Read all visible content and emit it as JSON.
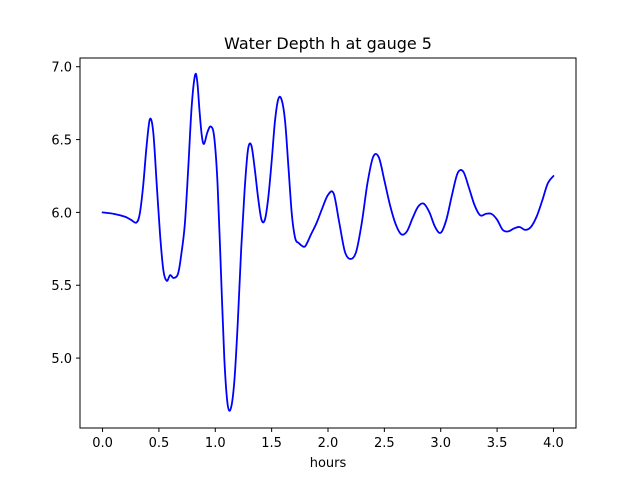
{
  "chart_data": {
    "type": "line",
    "title": "Water Depth h at gauge 5",
    "xlabel": "hours",
    "ylabel": "",
    "xlim": [
      -0.2,
      4.2
    ],
    "ylim": [
      4.52,
      7.06
    ],
    "xticks": [
      0.0,
      0.5,
      1.0,
      1.5,
      2.0,
      2.5,
      3.0,
      3.5,
      4.0
    ],
    "xtick_labels": [
      "0.0",
      "0.5",
      "1.0",
      "1.5",
      "2.0",
      "2.5",
      "3.0",
      "3.5",
      "4.0"
    ],
    "yticks": [
      5.0,
      5.5,
      6.0,
      6.5,
      7.0
    ],
    "ytick_labels": [
      "5.0",
      "5.5",
      "6.0",
      "6.5",
      "7.0"
    ],
    "grid": false,
    "series": [
      {
        "color": "#0000ff",
        "x": [
          0.0,
          0.1,
          0.2,
          0.25,
          0.3,
          0.33,
          0.36,
          0.39,
          0.42,
          0.45,
          0.48,
          0.51,
          0.54,
          0.57,
          0.6,
          0.63,
          0.67,
          0.7,
          0.73,
          0.76,
          0.79,
          0.82,
          0.84,
          0.86,
          0.88,
          0.9,
          0.93,
          0.96,
          0.99,
          1.02,
          1.05,
          1.08,
          1.11,
          1.14,
          1.17,
          1.2,
          1.23,
          1.26,
          1.29,
          1.32,
          1.35,
          1.38,
          1.41,
          1.44,
          1.47,
          1.5,
          1.53,
          1.56,
          1.59,
          1.62,
          1.65,
          1.68,
          1.71,
          1.74,
          1.77,
          1.8,
          1.85,
          1.9,
          1.95,
          2.0,
          2.05,
          2.1,
          2.15,
          2.2,
          2.25,
          2.3,
          2.35,
          2.4,
          2.45,
          2.5,
          2.55,
          2.6,
          2.65,
          2.7,
          2.75,
          2.8,
          2.85,
          2.9,
          2.95,
          3.0,
          3.05,
          3.1,
          3.15,
          3.2,
          3.25,
          3.3,
          3.35,
          3.4,
          3.45,
          3.5,
          3.55,
          3.6,
          3.65,
          3.7,
          3.75,
          3.8,
          3.85,
          3.9,
          3.95,
          4.0
        ],
        "y": [
          6.0,
          5.99,
          5.97,
          5.95,
          5.93,
          5.99,
          6.18,
          6.45,
          6.64,
          6.55,
          6.2,
          5.85,
          5.6,
          5.53,
          5.57,
          5.55,
          5.58,
          5.72,
          5.92,
          6.3,
          6.72,
          6.94,
          6.9,
          6.7,
          6.53,
          6.47,
          6.55,
          6.59,
          6.52,
          6.2,
          5.6,
          5.0,
          4.68,
          4.66,
          4.85,
          5.25,
          5.75,
          6.15,
          6.43,
          6.46,
          6.3,
          6.1,
          5.95,
          5.95,
          6.1,
          6.35,
          6.63,
          6.78,
          6.77,
          6.62,
          6.3,
          5.98,
          5.82,
          5.79,
          5.77,
          5.77,
          5.85,
          5.93,
          6.03,
          6.12,
          6.13,
          5.93,
          5.73,
          5.68,
          5.73,
          5.93,
          6.2,
          6.38,
          6.38,
          6.22,
          6.05,
          5.92,
          5.85,
          5.87,
          5.96,
          6.04,
          6.06,
          6.0,
          5.9,
          5.86,
          5.95,
          6.12,
          6.27,
          6.28,
          6.17,
          6.05,
          5.98,
          5.99,
          5.99,
          5.95,
          5.88,
          5.87,
          5.89,
          5.9,
          5.88,
          5.9,
          5.97,
          6.08,
          6.2,
          6.25
        ]
      }
    ]
  }
}
